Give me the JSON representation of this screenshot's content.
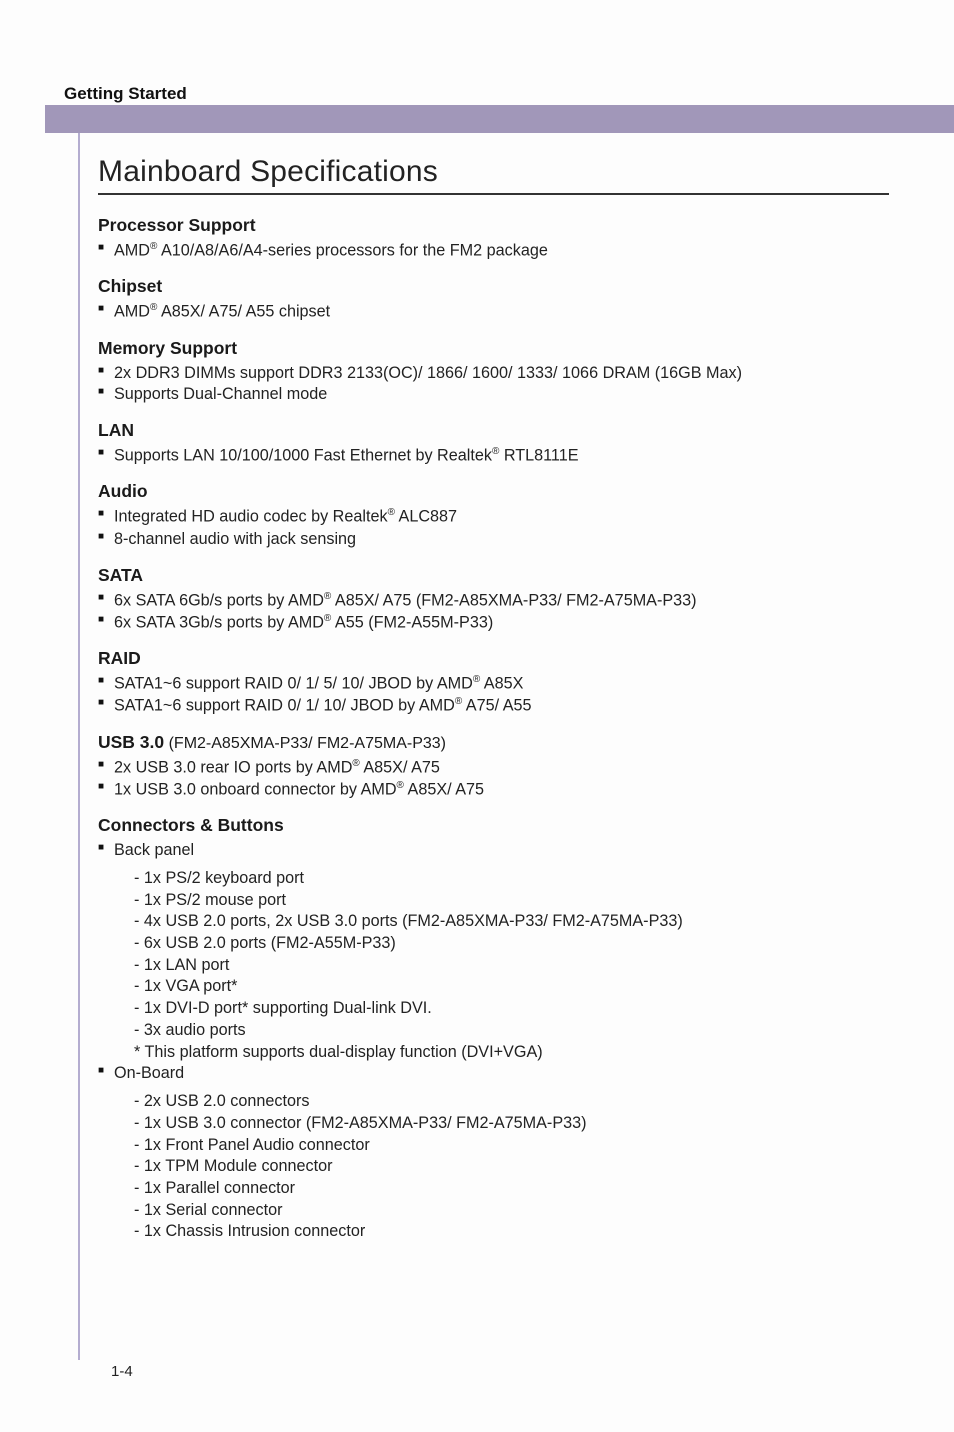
{
  "breadcrumb": "Getting Started",
  "title": "Mainboard Specifications",
  "pagenum": "1-4",
  "colors": {
    "header_bar": "#a197b9",
    "vline": "#b4add0",
    "rule": "#333333",
    "text": "#1a1a1a"
  },
  "sections": {
    "processor": {
      "heading": "Processor Support",
      "item0": "AMD® A10/A8/A6/A4-series processors for the FM2 package"
    },
    "chipset": {
      "heading": "Chipset",
      "item0": "AMD® A85X/ A75/ A55 chipset"
    },
    "memory": {
      "heading": "Memory Support",
      "item0": "2x DDR3 DIMMs support DDR3 2133(OC)/ 1866/ 1600/ 1333/ 1066 DRAM (16GB Max)",
      "item1": "Supports Dual-Channel mode"
    },
    "lan": {
      "heading": "LAN",
      "item0": "Supports LAN 10/100/1000 Fast Ethernet by Realtek® RTL8111E"
    },
    "audio": {
      "heading": "Audio",
      "item0": "Integrated HD audio codec by Realtek® ALC887",
      "item1": "8-channel audio with jack sensing"
    },
    "sata": {
      "heading": "SATA",
      "item0": "6x SATA 6Gb/s ports by AMD® A85X/ A75 (FM2-A85XMA-P33/ FM2-A75MA-P33)",
      "item1": "6x SATA 3Gb/s ports by AMD® A55 (FM2-A55M-P33)"
    },
    "raid": {
      "heading": "RAID",
      "item0": "SATA1~6 support RAID 0/ 1/ 5/ 10/ JBOD by AMD® A85X",
      "item1": "SATA1~6 support RAID 0/ 1/ 10/ JBOD by AMD® A75/ A55"
    },
    "usb30": {
      "heading": "USB 3.0",
      "heading_suffix": " (FM2-A85XMA-P33/ FM2-A75MA-P33)",
      "item0": "2x USB 3.0 rear IO ports by AMD® A85X/ A75",
      "item1": "1x USB 3.0 onboard connector by AMD® A85X/ A75"
    },
    "connectors": {
      "heading": "Connectors & Buttons",
      "back_panel": {
        "label": "Back panel",
        "i0": "1x PS/2 keyboard port",
        "i1": "1x PS/2 mouse port",
        "i2": "4x USB 2.0 ports, 2x USB 3.0 ports (FM2-A85XMA-P33/ FM2-A75MA-P33)",
        "i3": "6x USB 2.0 ports (FM2-A55M-P33)",
        "i4": "1x LAN port",
        "i5": "1x VGA port*",
        "i6": "1x DVI-D port* supporting Dual-link DVI.",
        "i7": "3x audio ports",
        "note": "This platform supports dual-display function (DVI+VGA)"
      },
      "on_board": {
        "label": "On-Board",
        "i0": "2x USB 2.0 connectors",
        "i1": "1x USB 3.0 connector (FM2-A85XMA-P33/ FM2-A75MA-P33)",
        "i2": "1x Front Panel Audio connector",
        "i3": "1x TPM Module connector",
        "i4": "1x Parallel connector",
        "i5": "1x Serial connector",
        "i6": "1x Chassis Intrusion connector"
      }
    }
  }
}
